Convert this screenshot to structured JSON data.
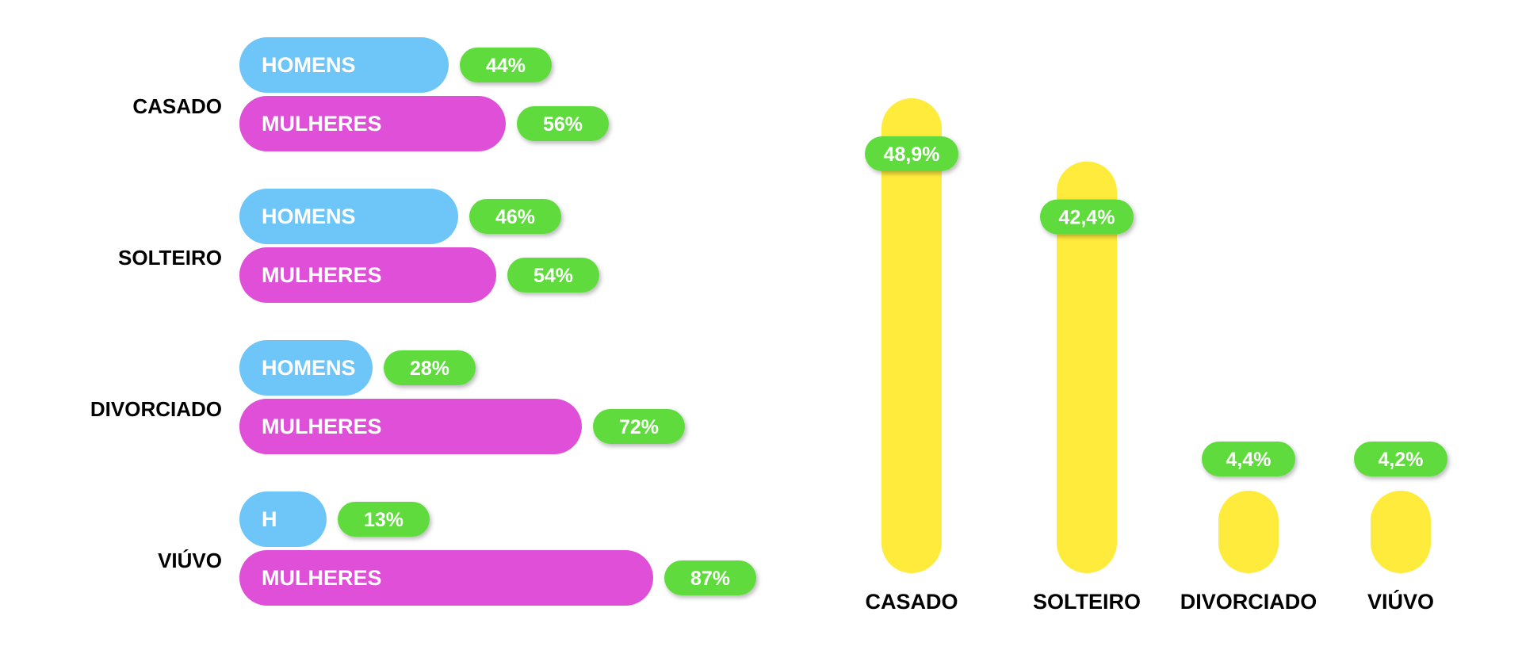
{
  "colors": {
    "homens": "#6ec6f8",
    "mulheres": "#e04fd8",
    "badge": "#5fdb3c",
    "column": "#ffeb3b",
    "label_text": "#000000",
    "pill_text": "#ffffff"
  },
  "chart_data": [
    {
      "type": "bar",
      "orientation": "horizontal",
      "categories": [
        "CASADO",
        "SOLTEIRO",
        "DIVORCIADO",
        "VIÚVO"
      ],
      "series": [
        {
          "name": "HOMENS",
          "values": [
            44,
            46,
            28,
            13
          ],
          "value_labels": [
            "44%",
            "46%",
            "28%",
            "13%"
          ],
          "bar_labels": [
            "HOMENS",
            "HOMENS",
            "HOMENS",
            "H"
          ]
        },
        {
          "name": "MULHERES",
          "values": [
            56,
            54,
            72,
            87
          ],
          "value_labels": [
            "56%",
            "54%",
            "72%",
            "87%"
          ],
          "bar_labels": [
            "MULHERES",
            "MULHERES",
            "MULHERES",
            "MULHERES"
          ]
        }
      ],
      "unit": "%",
      "legend": "none",
      "grid": false
    },
    {
      "type": "bar",
      "orientation": "vertical",
      "categories": [
        "CASADO",
        "SOLTEIRO",
        "DIVORCIADO",
        "VIÚVO"
      ],
      "values": [
        48.9,
        42.4,
        4.4,
        4.2
      ],
      "value_labels": [
        "48,9%",
        "42,4%",
        "4,4%",
        "4,2%"
      ],
      "unit": "%",
      "ylim": [
        0,
        50
      ],
      "legend": "none",
      "grid": false
    }
  ]
}
